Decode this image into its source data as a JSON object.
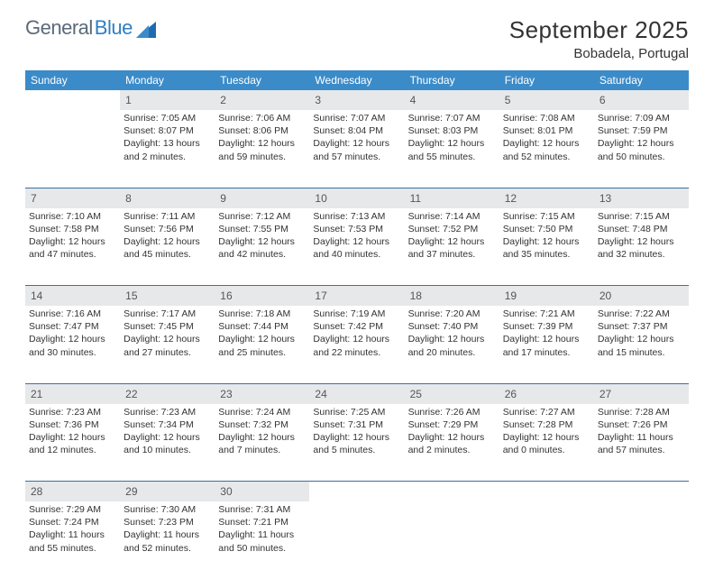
{
  "logo": {
    "text1": "General",
    "text2": "Blue"
  },
  "title": "September 2025",
  "location": "Bobadela, Portugal",
  "colors": {
    "header_bg": "#3b8bc8",
    "header_text": "#ffffff",
    "daynum_bg": "#e7e8ea",
    "row_border": "#3b6fa0",
    "logo_gray": "#5a6a7a",
    "logo_blue": "#2f7fc2"
  },
  "weekdays": [
    "Sunday",
    "Monday",
    "Tuesday",
    "Wednesday",
    "Thursday",
    "Friday",
    "Saturday"
  ],
  "weeks": [
    [
      null,
      {
        "n": "1",
        "sr": "7:05 AM",
        "ss": "8:07 PM",
        "dl": "13 hours and 2 minutes."
      },
      {
        "n": "2",
        "sr": "7:06 AM",
        "ss": "8:06 PM",
        "dl": "12 hours and 59 minutes."
      },
      {
        "n": "3",
        "sr": "7:07 AM",
        "ss": "8:04 PM",
        "dl": "12 hours and 57 minutes."
      },
      {
        "n": "4",
        "sr": "7:07 AM",
        "ss": "8:03 PM",
        "dl": "12 hours and 55 minutes."
      },
      {
        "n": "5",
        "sr": "7:08 AM",
        "ss": "8:01 PM",
        "dl": "12 hours and 52 minutes."
      },
      {
        "n": "6",
        "sr": "7:09 AM",
        "ss": "7:59 PM",
        "dl": "12 hours and 50 minutes."
      }
    ],
    [
      {
        "n": "7",
        "sr": "7:10 AM",
        "ss": "7:58 PM",
        "dl": "12 hours and 47 minutes."
      },
      {
        "n": "8",
        "sr": "7:11 AM",
        "ss": "7:56 PM",
        "dl": "12 hours and 45 minutes."
      },
      {
        "n": "9",
        "sr": "7:12 AM",
        "ss": "7:55 PM",
        "dl": "12 hours and 42 minutes."
      },
      {
        "n": "10",
        "sr": "7:13 AM",
        "ss": "7:53 PM",
        "dl": "12 hours and 40 minutes."
      },
      {
        "n": "11",
        "sr": "7:14 AM",
        "ss": "7:52 PM",
        "dl": "12 hours and 37 minutes."
      },
      {
        "n": "12",
        "sr": "7:15 AM",
        "ss": "7:50 PM",
        "dl": "12 hours and 35 minutes."
      },
      {
        "n": "13",
        "sr": "7:15 AM",
        "ss": "7:48 PM",
        "dl": "12 hours and 32 minutes."
      }
    ],
    [
      {
        "n": "14",
        "sr": "7:16 AM",
        "ss": "7:47 PM",
        "dl": "12 hours and 30 minutes."
      },
      {
        "n": "15",
        "sr": "7:17 AM",
        "ss": "7:45 PM",
        "dl": "12 hours and 27 minutes."
      },
      {
        "n": "16",
        "sr": "7:18 AM",
        "ss": "7:44 PM",
        "dl": "12 hours and 25 minutes."
      },
      {
        "n": "17",
        "sr": "7:19 AM",
        "ss": "7:42 PM",
        "dl": "12 hours and 22 minutes."
      },
      {
        "n": "18",
        "sr": "7:20 AM",
        "ss": "7:40 PM",
        "dl": "12 hours and 20 minutes."
      },
      {
        "n": "19",
        "sr": "7:21 AM",
        "ss": "7:39 PM",
        "dl": "12 hours and 17 minutes."
      },
      {
        "n": "20",
        "sr": "7:22 AM",
        "ss": "7:37 PM",
        "dl": "12 hours and 15 minutes."
      }
    ],
    [
      {
        "n": "21",
        "sr": "7:23 AM",
        "ss": "7:36 PM",
        "dl": "12 hours and 12 minutes."
      },
      {
        "n": "22",
        "sr": "7:23 AM",
        "ss": "7:34 PM",
        "dl": "12 hours and 10 minutes."
      },
      {
        "n": "23",
        "sr": "7:24 AM",
        "ss": "7:32 PM",
        "dl": "12 hours and 7 minutes."
      },
      {
        "n": "24",
        "sr": "7:25 AM",
        "ss": "7:31 PM",
        "dl": "12 hours and 5 minutes."
      },
      {
        "n": "25",
        "sr": "7:26 AM",
        "ss": "7:29 PM",
        "dl": "12 hours and 2 minutes."
      },
      {
        "n": "26",
        "sr": "7:27 AM",
        "ss": "7:28 PM",
        "dl": "12 hours and 0 minutes."
      },
      {
        "n": "27",
        "sr": "7:28 AM",
        "ss": "7:26 PM",
        "dl": "11 hours and 57 minutes."
      }
    ],
    [
      {
        "n": "28",
        "sr": "7:29 AM",
        "ss": "7:24 PM",
        "dl": "11 hours and 55 minutes."
      },
      {
        "n": "29",
        "sr": "7:30 AM",
        "ss": "7:23 PM",
        "dl": "11 hours and 52 minutes."
      },
      {
        "n": "30",
        "sr": "7:31 AM",
        "ss": "7:21 PM",
        "dl": "11 hours and 50 minutes."
      },
      null,
      null,
      null,
      null
    ]
  ],
  "labels": {
    "sunrise": "Sunrise: ",
    "sunset": "Sunset: ",
    "daylight": "Daylight: "
  }
}
